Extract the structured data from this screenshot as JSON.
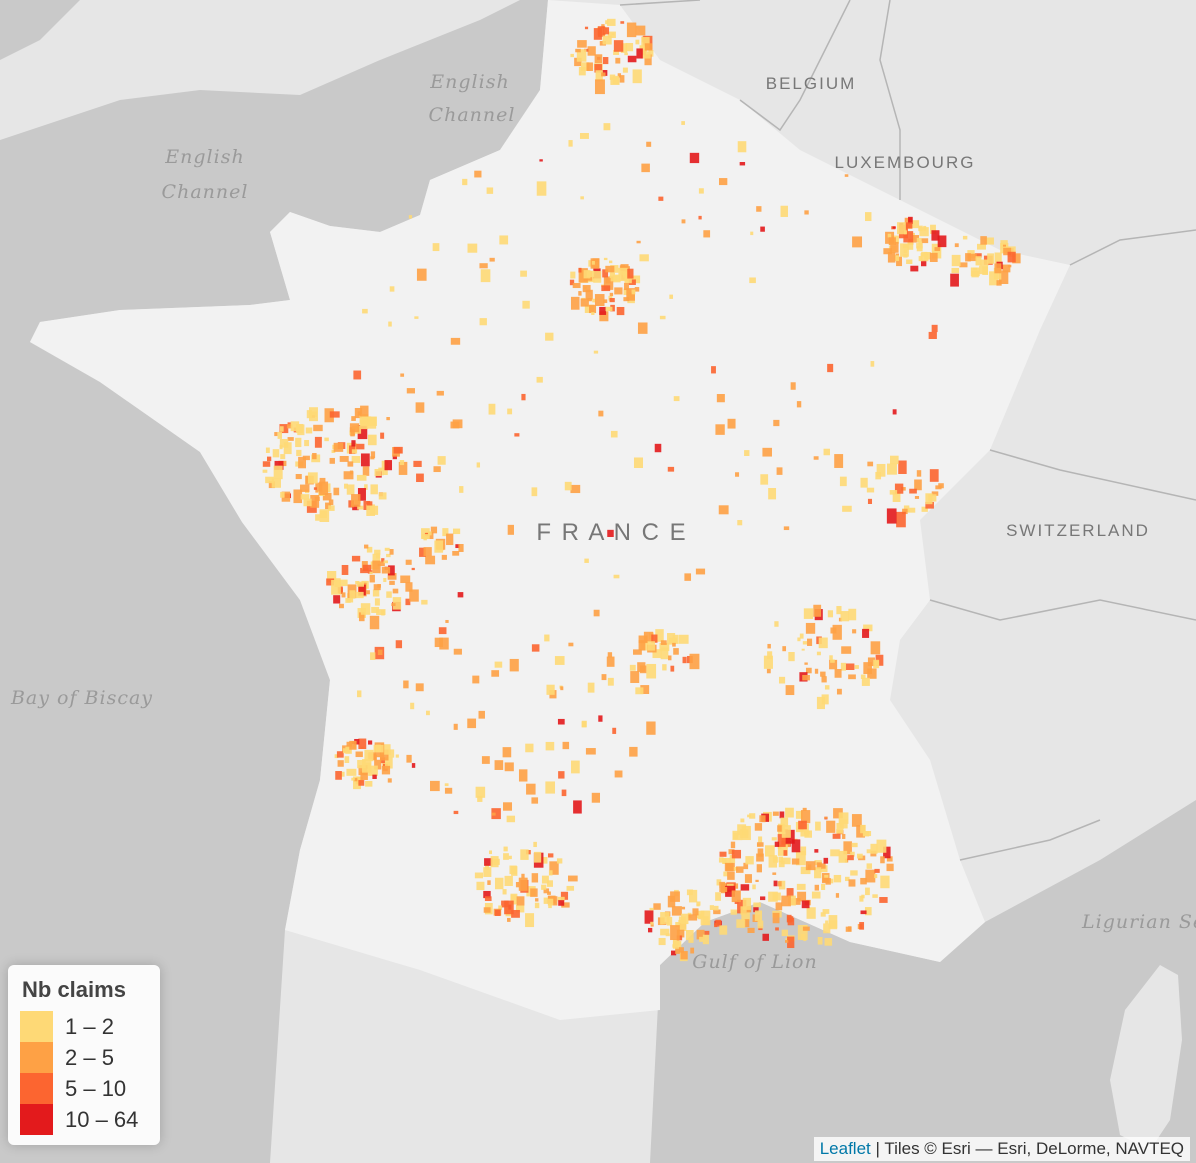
{
  "map": {
    "labels": {
      "english_channel_1": [
        "English",
        "Channel"
      ],
      "english_channel_2": [
        "English",
        "Channel"
      ],
      "belgium": "BELGIUM",
      "luxembourg": "LUXEMBOURG",
      "france": "F R A N C E",
      "switzerland": "SWITZERLAND",
      "bay_of_biscay": "Bay of Biscay",
      "gulf_of_lion": "Gulf of Lion",
      "ligurian_sea": "Ligurian Sea"
    },
    "legend": {
      "title": "Nb claims",
      "classes": [
        {
          "label": "1 – 2",
          "color": "#fed976"
        },
        {
          "label": "2 – 5",
          "color": "#fea145"
        },
        {
          "label": "5 – 10",
          "color": "#fc6530"
        },
        {
          "label": "10 – 64",
          "color": "#e31a1c"
        }
      ]
    },
    "attribution": {
      "link": "Leaflet",
      "text": "| Tiles © Esri — Esri, DeLorme, NAVTEQ"
    }
  }
}
